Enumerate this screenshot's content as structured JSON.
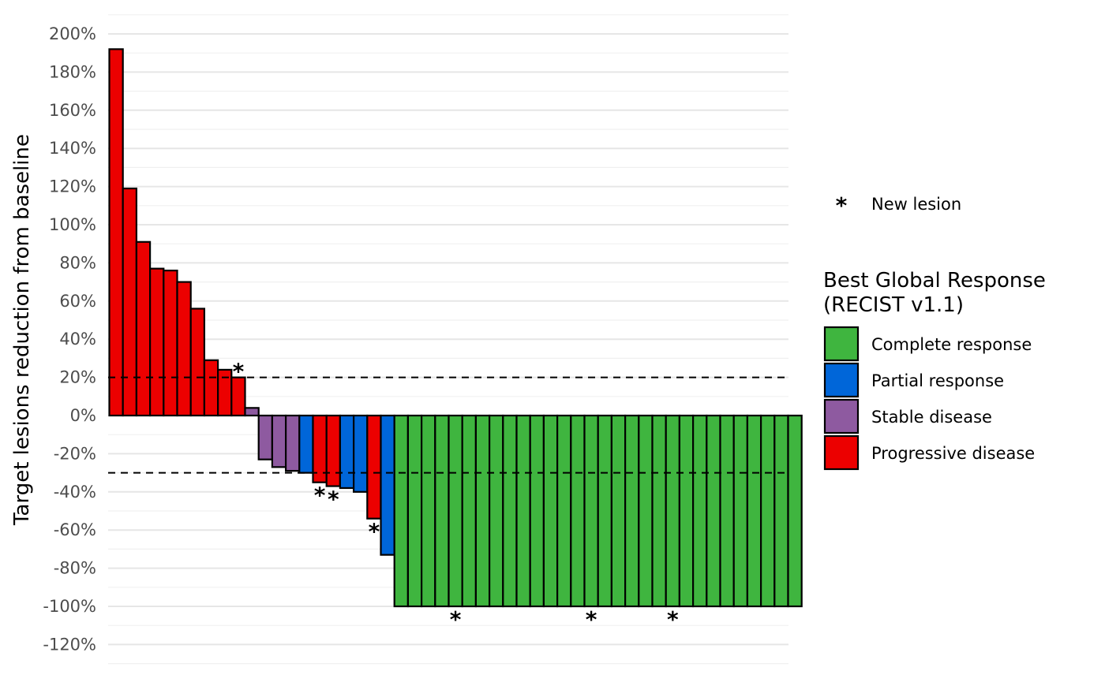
{
  "chart_data": {
    "type": "bar",
    "title": "",
    "xlabel": "",
    "ylabel": "Target lesions reduction from baseline",
    "ylim": [
      -130,
      210
    ],
    "y_ticks": [
      -120,
      -100,
      -80,
      -60,
      -40,
      -20,
      0,
      20,
      40,
      60,
      80,
      100,
      120,
      140,
      160,
      180,
      200
    ],
    "y_tick_labels": [
      "-120%",
      "-100%",
      "-80%",
      "-60%",
      "-40%",
      "-20%",
      "0%",
      "20%",
      "40%",
      "60%",
      "80%",
      "100%",
      "120%",
      "140%",
      "160%",
      "180%",
      "200%"
    ],
    "grid": true,
    "reference_lines": [
      20,
      -30
    ],
    "values": [
      192,
      119,
      91,
      77,
      76,
      70,
      56,
      29,
      24,
      20,
      4,
      -23,
      -27,
      -29,
      -30,
      -35,
      -37,
      -38,
      -40,
      -54,
      -73,
      -100,
      -100,
      -100,
      -100,
      -100,
      -100,
      -100,
      -100,
      -100,
      -100,
      -100,
      -100,
      -100,
      -100,
      -100,
      -100,
      -100,
      -100,
      -100,
      -100,
      -100,
      -100,
      -100,
      -100,
      -100,
      -100,
      -100,
      -100,
      -100,
      -100
    ],
    "response": [
      "PD",
      "PD",
      "PD",
      "PD",
      "PD",
      "PD",
      "PD",
      "PD",
      "PD",
      "PD",
      "SD",
      "SD",
      "SD",
      "SD",
      "PR",
      "PD",
      "PD",
      "PR",
      "PR",
      "PD",
      "PR",
      "CR",
      "CR",
      "CR",
      "CR",
      "CR",
      "CR",
      "CR",
      "CR",
      "CR",
      "CR",
      "CR",
      "CR",
      "CR",
      "CR",
      "CR",
      "CR",
      "CR",
      "CR",
      "CR",
      "CR",
      "CR",
      "CR",
      "CR",
      "CR",
      "CR",
      "CR",
      "CR",
      "CR",
      "CR",
      "CR"
    ],
    "new_lesion": [
      false,
      false,
      false,
      false,
      false,
      false,
      false,
      false,
      false,
      true,
      false,
      false,
      false,
      false,
      false,
      true,
      true,
      false,
      false,
      true,
      false,
      false,
      false,
      false,
      false,
      true,
      false,
      false,
      false,
      false,
      false,
      false,
      false,
      false,
      false,
      true,
      false,
      false,
      false,
      false,
      false,
      true,
      false,
      false,
      false,
      false,
      false,
      false,
      false,
      false,
      false
    ],
    "new_lesion_symbol": "*",
    "legend": {
      "marker_label": "New lesion",
      "title_line1": "Best Global Response",
      "title_line2": "(RECIST v1.1)",
      "items": [
        {
          "key": "CR",
          "label": "Complete response",
          "color": "#3fb53f"
        },
        {
          "key": "PR",
          "label": "Partial response",
          "color": "#0066d9"
        },
        {
          "key": "SD",
          "label": "Stable disease",
          "color": "#8e5aa0"
        },
        {
          "key": "PD",
          "label": "Progressive disease",
          "color": "#ec0000"
        }
      ],
      "placement": "right"
    }
  }
}
